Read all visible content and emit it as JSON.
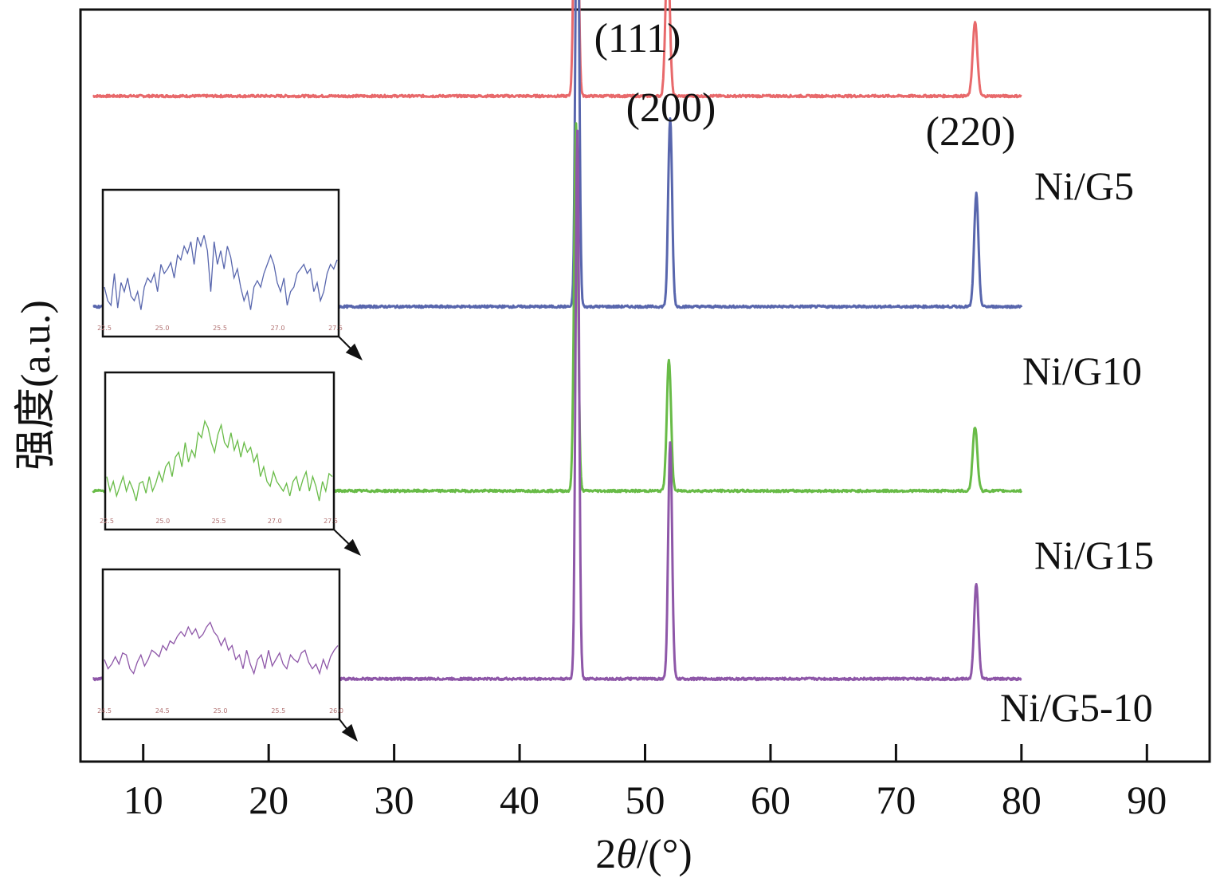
{
  "chart_data": {
    "type": "line",
    "title": "",
    "xlabel_prefix": "2",
    "xlabel_symbol": "θ",
    "xlabel_suffix": "/(°)",
    "ylabel": "强度(a.u.)",
    "xlim": [
      5,
      95
    ],
    "xticks": [
      10,
      20,
      30,
      40,
      50,
      60,
      70,
      80,
      90
    ],
    "y_ticks_shown": false,
    "grid": false,
    "legend": "labels at right end of each trace",
    "x_range": [
      6,
      80
    ],
    "series": [
      {
        "name": "Ni/G5",
        "color": "#e8696b",
        "offset": 0.885,
        "baseline": 0.0,
        "peaks": [
          {
            "label": "(111)",
            "x": 44.5,
            "height": 0.515,
            "width": 0.22
          },
          {
            "label": "(200)",
            "x": 51.8,
            "height": 0.2,
            "width": 0.24
          },
          {
            "label": "(220)",
            "x": 76.3,
            "height": 0.098,
            "width": 0.26
          }
        ]
      },
      {
        "name": "Ni/G10",
        "color": "#5866ad",
        "offset": 0.605,
        "baseline": 0.0,
        "peaks": [
          {
            "x": 44.6,
            "height": 0.66,
            "width": 0.2
          },
          {
            "x": 52.0,
            "height": 0.25,
            "width": 0.22
          },
          {
            "x": 76.4,
            "height": 0.15,
            "width": 0.24
          }
        ],
        "inset": {
          "ticks": [
            "22.5",
            "25.0",
            "25.5",
            "27.0",
            "27.5"
          ],
          "values": [
            0.35,
            0.2,
            0.15,
            0.5,
            0.12,
            0.4,
            0.3,
            0.45,
            0.25,
            0.2,
            0.3,
            0.1,
            0.35,
            0.45,
            0.4,
            0.5,
            0.3,
            0.6,
            0.5,
            0.55,
            0.62,
            0.45,
            0.7,
            0.65,
            0.8,
            0.72,
            0.85,
            0.6,
            0.9,
            0.8,
            0.92,
            0.75,
            0.3,
            0.85,
            0.6,
            0.75,
            0.55,
            0.8,
            0.68,
            0.45,
            0.55,
            0.35,
            0.2,
            0.3,
            0.1,
            0.35,
            0.42,
            0.35,
            0.5,
            0.6,
            0.7,
            0.6,
            0.4,
            0.3,
            0.45,
            0.15,
            0.3,
            0.35,
            0.5,
            0.55,
            0.6,
            0.5,
            0.55,
            0.3,
            0.4,
            0.2,
            0.3,
            0.5,
            0.6,
            0.55,
            0.65
          ]
        }
      },
      {
        "name": "Ni/G15",
        "color": "#68bb47",
        "offset": 0.36,
        "baseline": 0.0,
        "peaks": [
          {
            "x": 44.5,
            "height": 0.49,
            "width": 0.22
          },
          {
            "x": 51.9,
            "height": 0.175,
            "width": 0.24
          },
          {
            "x": 76.3,
            "height": 0.085,
            "width": 0.26
          }
        ],
        "inset": {
          "ticks": [
            "22.5",
            "25.0",
            "25.5",
            "27.0",
            "27.5"
          ],
          "values": [
            0.35,
            0.2,
            0.3,
            0.15,
            0.25,
            0.35,
            0.2,
            0.3,
            0.22,
            0.1,
            0.28,
            0.3,
            0.18,
            0.35,
            0.2,
            0.28,
            0.4,
            0.3,
            0.45,
            0.5,
            0.35,
            0.55,
            0.6,
            0.45,
            0.7,
            0.5,
            0.62,
            0.55,
            0.8,
            0.75,
            0.92,
            0.85,
            0.7,
            0.6,
            0.78,
            0.88,
            0.7,
            0.65,
            0.8,
            0.62,
            0.72,
            0.55,
            0.7,
            0.6,
            0.65,
            0.5,
            0.58,
            0.35,
            0.45,
            0.3,
            0.25,
            0.4,
            0.3,
            0.25,
            0.2,
            0.28,
            0.15,
            0.3,
            0.35,
            0.2,
            0.32,
            0.4,
            0.2,
            0.35,
            0.25,
            0.1,
            0.3,
            0.2,
            0.38,
            0.35
          ]
        }
      },
      {
        "name": "Ni/G5-10",
        "color": "#8e57a8",
        "offset": 0.11,
        "baseline": 0.0,
        "peaks": [
          {
            "x": 44.6,
            "height": 0.73,
            "width": 0.2
          },
          {
            "x": 52.0,
            "height": 0.315,
            "width": 0.22
          },
          {
            "x": 76.4,
            "height": 0.127,
            "width": 0.24
          }
        ],
        "inset": {
          "ticks": [
            "24.5",
            "24.5",
            "25.0",
            "25.5",
            "26.0"
          ],
          "values": [
            0.45,
            0.35,
            0.4,
            0.48,
            0.4,
            0.52,
            0.5,
            0.35,
            0.3,
            0.42,
            0.5,
            0.38,
            0.45,
            0.55,
            0.52,
            0.48,
            0.6,
            0.55,
            0.65,
            0.62,
            0.7,
            0.75,
            0.7,
            0.8,
            0.72,
            0.78,
            0.68,
            0.72,
            0.8,
            0.85,
            0.75,
            0.7,
            0.6,
            0.68,
            0.55,
            0.6,
            0.45,
            0.5,
            0.35,
            0.55,
            0.4,
            0.3,
            0.45,
            0.5,
            0.35,
            0.55,
            0.38,
            0.45,
            0.52,
            0.4,
            0.35,
            0.5,
            0.45,
            0.42,
            0.52,
            0.55,
            0.42,
            0.35,
            0.4,
            0.3,
            0.45,
            0.35,
            0.48,
            0.55,
            0.6
          ]
        }
      }
    ]
  }
}
